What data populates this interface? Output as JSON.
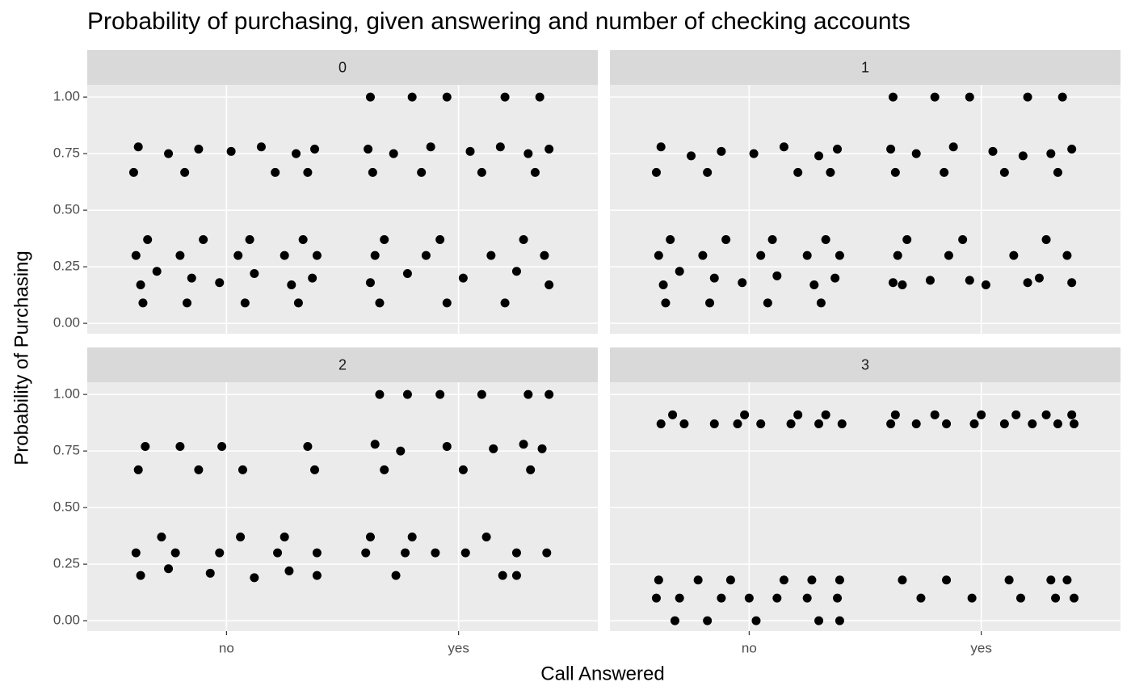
{
  "title": "Probability of purchasing, given answering and number of checking accounts",
  "x_label": "Call Answered",
  "y_label": "Probability of Purchasing",
  "chart_data": [
    {
      "type": "scatter",
      "title": "0",
      "color": "#000000",
      "x": [
        0.62,
        0.75,
        0.88,
        1.02,
        1.15,
        1.3,
        1.38,
        0.6,
        0.82,
        1.21,
        1.35,
        0.66,
        0.9,
        1.1,
        1.33,
        0.61,
        0.8,
        1.05,
        1.25,
        1.39,
        0.63,
        0.7,
        0.85,
        0.97,
        1.12,
        1.28,
        1.37,
        0.64,
        0.83,
        1.08,
        1.31,
        1.62,
        1.8,
        1.95,
        2.2,
        2.35,
        1.61,
        1.72,
        1.88,
        2.05,
        2.18,
        2.3,
        2.39,
        1.63,
        1.84,
        2.1,
        2.33,
        1.68,
        1.92,
        2.28,
        1.64,
        1.86,
        2.14,
        2.37,
        1.62,
        1.78,
        2.02,
        2.25,
        2.39,
        1.66,
        1.95,
        2.2
      ],
      "y": [
        0.78,
        0.75,
        0.77,
        0.76,
        0.78,
        0.75,
        0.77,
        0.667,
        0.667,
        0.667,
        0.667,
        0.37,
        0.37,
        0.37,
        0.37,
        0.3,
        0.3,
        0.3,
        0.3,
        0.3,
        0.17,
        0.23,
        0.2,
        0.18,
        0.22,
        0.17,
        0.2,
        0.09,
        0.09,
        0.09,
        0.09,
        1.0,
        1.0,
        1.0,
        1.0,
        1.0,
        0.77,
        0.75,
        0.78,
        0.76,
        0.78,
        0.75,
        0.77,
        0.667,
        0.667,
        0.667,
        0.667,
        0.37,
        0.37,
        0.37,
        0.3,
        0.3,
        0.3,
        0.3,
        0.18,
        0.22,
        0.2,
        0.23,
        0.17,
        0.09,
        0.09,
        0.09
      ],
      "xlim": [
        0.4,
        2.6
      ],
      "xticks": [
        {
          "value": 1,
          "label": "no"
        },
        {
          "value": 2,
          "label": "yes"
        }
      ],
      "ylim": [
        -0.046,
        1.054
      ],
      "yticks": [
        {
          "value": 0,
          "label": "0.00"
        },
        {
          "value": 0.25,
          "label": "0.25"
        },
        {
          "value": 0.5,
          "label": "0.50"
        },
        {
          "value": 0.75,
          "label": "0.75"
        },
        {
          "value": 1,
          "label": "1.00"
        }
      ]
    },
    {
      "type": "scatter",
      "title": "1",
      "color": "#000000",
      "x": [
        0.62,
        0.75,
        0.88,
        1.02,
        1.15,
        1.3,
        1.38,
        0.6,
        0.82,
        1.21,
        1.35,
        0.66,
        0.9,
        1.1,
        1.33,
        0.61,
        0.8,
        1.05,
        1.25,
        1.39,
        0.63,
        0.7,
        0.85,
        0.97,
        1.12,
        1.28,
        1.37,
        0.64,
        0.83,
        1.08,
        1.31,
        1.62,
        1.8,
        1.95,
        2.2,
        2.35,
        1.61,
        1.72,
        1.88,
        2.05,
        2.18,
        2.3,
        2.39,
        1.63,
        1.84,
        2.1,
        2.33,
        1.68,
        1.92,
        2.28,
        1.64,
        1.86,
        2.14,
        2.37,
        1.62,
        1.78,
        2.02,
        2.25,
        2.39,
        1.66,
        1.95,
        2.2
      ],
      "y": [
        0.78,
        0.74,
        0.76,
        0.75,
        0.78,
        0.74,
        0.77,
        0.667,
        0.667,
        0.667,
        0.667,
        0.37,
        0.37,
        0.37,
        0.37,
        0.3,
        0.3,
        0.3,
        0.3,
        0.3,
        0.17,
        0.23,
        0.2,
        0.18,
        0.21,
        0.17,
        0.2,
        0.09,
        0.09,
        0.09,
        0.09,
        1.0,
        1.0,
        1.0,
        1.0,
        1.0,
        0.77,
        0.75,
        0.78,
        0.76,
        0.74,
        0.75,
        0.77,
        0.667,
        0.667,
        0.667,
        0.667,
        0.37,
        0.37,
        0.37,
        0.3,
        0.3,
        0.3,
        0.3,
        0.18,
        0.19,
        0.17,
        0.2,
        0.18,
        0.17,
        0.19,
        0.18
      ],
      "xlim": [
        0.4,
        2.6
      ],
      "xticks": [
        {
          "value": 1,
          "label": "no"
        },
        {
          "value": 2,
          "label": "yes"
        }
      ],
      "ylim": [
        -0.046,
        1.054
      ],
      "yticks": [
        {
          "value": 0,
          "label": "0.00"
        },
        {
          "value": 0.25,
          "label": "0.25"
        },
        {
          "value": 0.5,
          "label": "0.50"
        },
        {
          "value": 0.75,
          "label": "0.75"
        },
        {
          "value": 1,
          "label": "1.00"
        }
      ]
    },
    {
      "type": "scatter",
      "title": "2",
      "color": "#000000",
      "x": [
        0.65,
        0.8,
        0.98,
        1.35,
        0.62,
        0.88,
        1.07,
        1.38,
        0.72,
        1.06,
        1.25,
        0.61,
        0.78,
        0.97,
        1.22,
        1.39,
        0.63,
        0.75,
        0.93,
        1.12,
        1.27,
        1.39,
        1.66,
        1.78,
        1.92,
        2.1,
        2.3,
        2.39,
        1.64,
        1.75,
        1.95,
        2.15,
        2.28,
        2.36,
        1.68,
        2.02,
        2.31,
        1.62,
        1.8,
        2.12,
        1.6,
        1.77,
        1.9,
        2.03,
        2.25,
        2.38,
        1.73,
        2.19,
        2.25
      ],
      "y": [
        0.77,
        0.77,
        0.77,
        0.77,
        0.667,
        0.667,
        0.667,
        0.667,
        0.37,
        0.37,
        0.37,
        0.3,
        0.3,
        0.3,
        0.3,
        0.3,
        0.2,
        0.23,
        0.21,
        0.19,
        0.22,
        0.2,
        1.0,
        1.0,
        1.0,
        1.0,
        1.0,
        1.0,
        0.78,
        0.75,
        0.77,
        0.76,
        0.78,
        0.76,
        0.667,
        0.667,
        0.667,
        0.37,
        0.37,
        0.37,
        0.3,
        0.3,
        0.3,
        0.3,
        0.3,
        0.3,
        0.2,
        0.2,
        0.2
      ],
      "xlim": [
        0.4,
        2.6
      ],
      "xticks": [
        {
          "value": 1,
          "label": "no"
        },
        {
          "value": 2,
          "label": "yes"
        }
      ],
      "ylim": [
        -0.046,
        1.054
      ],
      "yticks": [
        {
          "value": 0,
          "label": "0.00"
        },
        {
          "value": 0.25,
          "label": "0.25"
        },
        {
          "value": 0.5,
          "label": "0.50"
        },
        {
          "value": 0.75,
          "label": "0.75"
        },
        {
          "value": 1,
          "label": "1.00"
        }
      ]
    },
    {
      "type": "scatter",
      "title": "3",
      "color": "#000000",
      "x": [
        0.62,
        0.72,
        0.85,
        0.95,
        1.05,
        1.18,
        1.3,
        1.4,
        0.67,
        0.98,
        1.21,
        1.33,
        0.61,
        0.78,
        0.92,
        1.15,
        1.27,
        1.39,
        0.6,
        0.7,
        0.88,
        1.0,
        1.12,
        1.25,
        1.38,
        0.68,
        0.82,
        1.03,
        1.3,
        1.39,
        1.61,
        1.72,
        1.85,
        1.97,
        2.1,
        2.22,
        2.33,
        2.4,
        1.63,
        1.8,
        2.0,
        2.15,
        2.28,
        2.39,
        1.66,
        1.85,
        2.12,
        2.3,
        2.37,
        1.74,
        1.96,
        2.17,
        2.32,
        2.4
      ],
      "y": [
        0.87,
        0.87,
        0.87,
        0.87,
        0.87,
        0.87,
        0.87,
        0.87,
        0.91,
        0.91,
        0.91,
        0.91,
        0.18,
        0.18,
        0.18,
        0.18,
        0.18,
        0.18,
        0.1,
        0.1,
        0.1,
        0.1,
        0.1,
        0.1,
        0.1,
        0.0,
        0.0,
        0.0,
        0.0,
        0.0,
        0.87,
        0.87,
        0.87,
        0.87,
        0.87,
        0.87,
        0.87,
        0.87,
        0.91,
        0.91,
        0.91,
        0.91,
        0.91,
        0.91,
        0.18,
        0.18,
        0.18,
        0.18,
        0.18,
        0.1,
        0.1,
        0.1,
        0.1,
        0.1
      ],
      "xlim": [
        0.4,
        2.6
      ],
      "xticks": [
        {
          "value": 1,
          "label": "no"
        },
        {
          "value": 2,
          "label": "yes"
        }
      ],
      "ylim": [
        -0.046,
        1.054
      ],
      "yticks": [
        {
          "value": 0,
          "label": "0.00"
        },
        {
          "value": 0.25,
          "label": "0.25"
        },
        {
          "value": 0.5,
          "label": "0.50"
        },
        {
          "value": 0.75,
          "label": "0.75"
        },
        {
          "value": 1,
          "label": "1.00"
        }
      ]
    }
  ]
}
